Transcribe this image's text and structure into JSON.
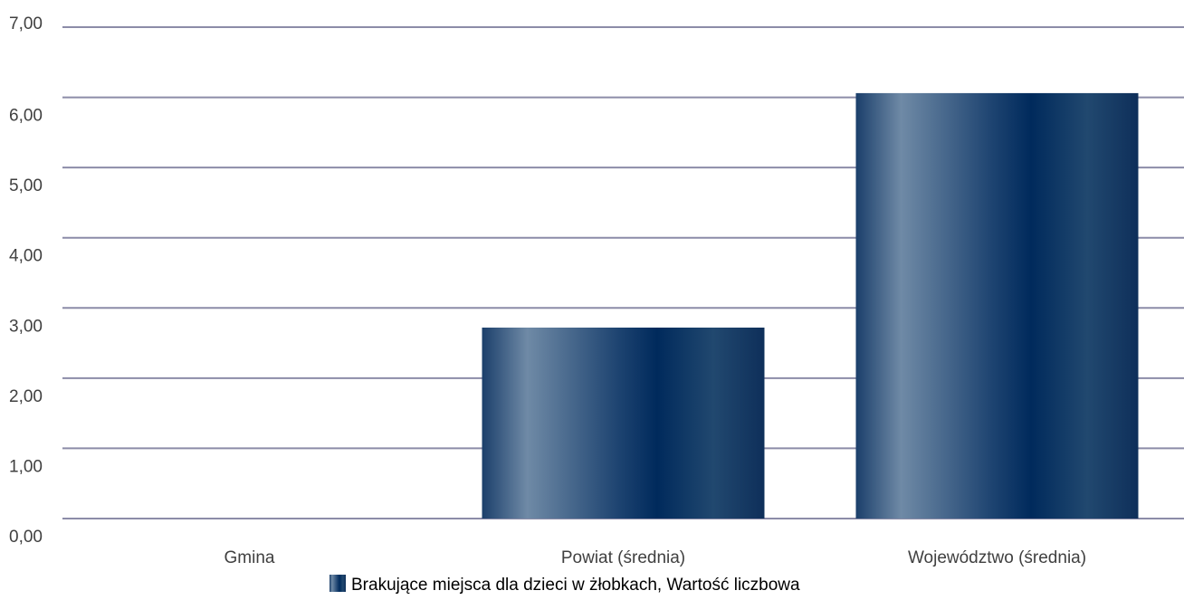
{
  "chart_data": {
    "type": "bar",
    "categories": [
      "Gmina",
      "Powiat (średnia)",
      "Województwo (średnia)"
    ],
    "series": [
      {
        "name": "Brakujące miejsca dla dzieci w żłobkach, Wartość liczbowa",
        "values": [
          0,
          2.72,
          6.06
        ]
      }
    ],
    "y_tick_labels": [
      "0,00",
      "1,00",
      "2,00",
      "3,00",
      "4,00",
      "5,00",
      "6,00",
      "7,00"
    ],
    "ylim": [
      0,
      7
    ],
    "grid": true,
    "legend_position": "bottom"
  },
  "colors": {
    "bar_dark": "#002a5c",
    "bar_light": "#6f8aa6",
    "gridline": "#8c8ca8",
    "text": "#404040"
  }
}
